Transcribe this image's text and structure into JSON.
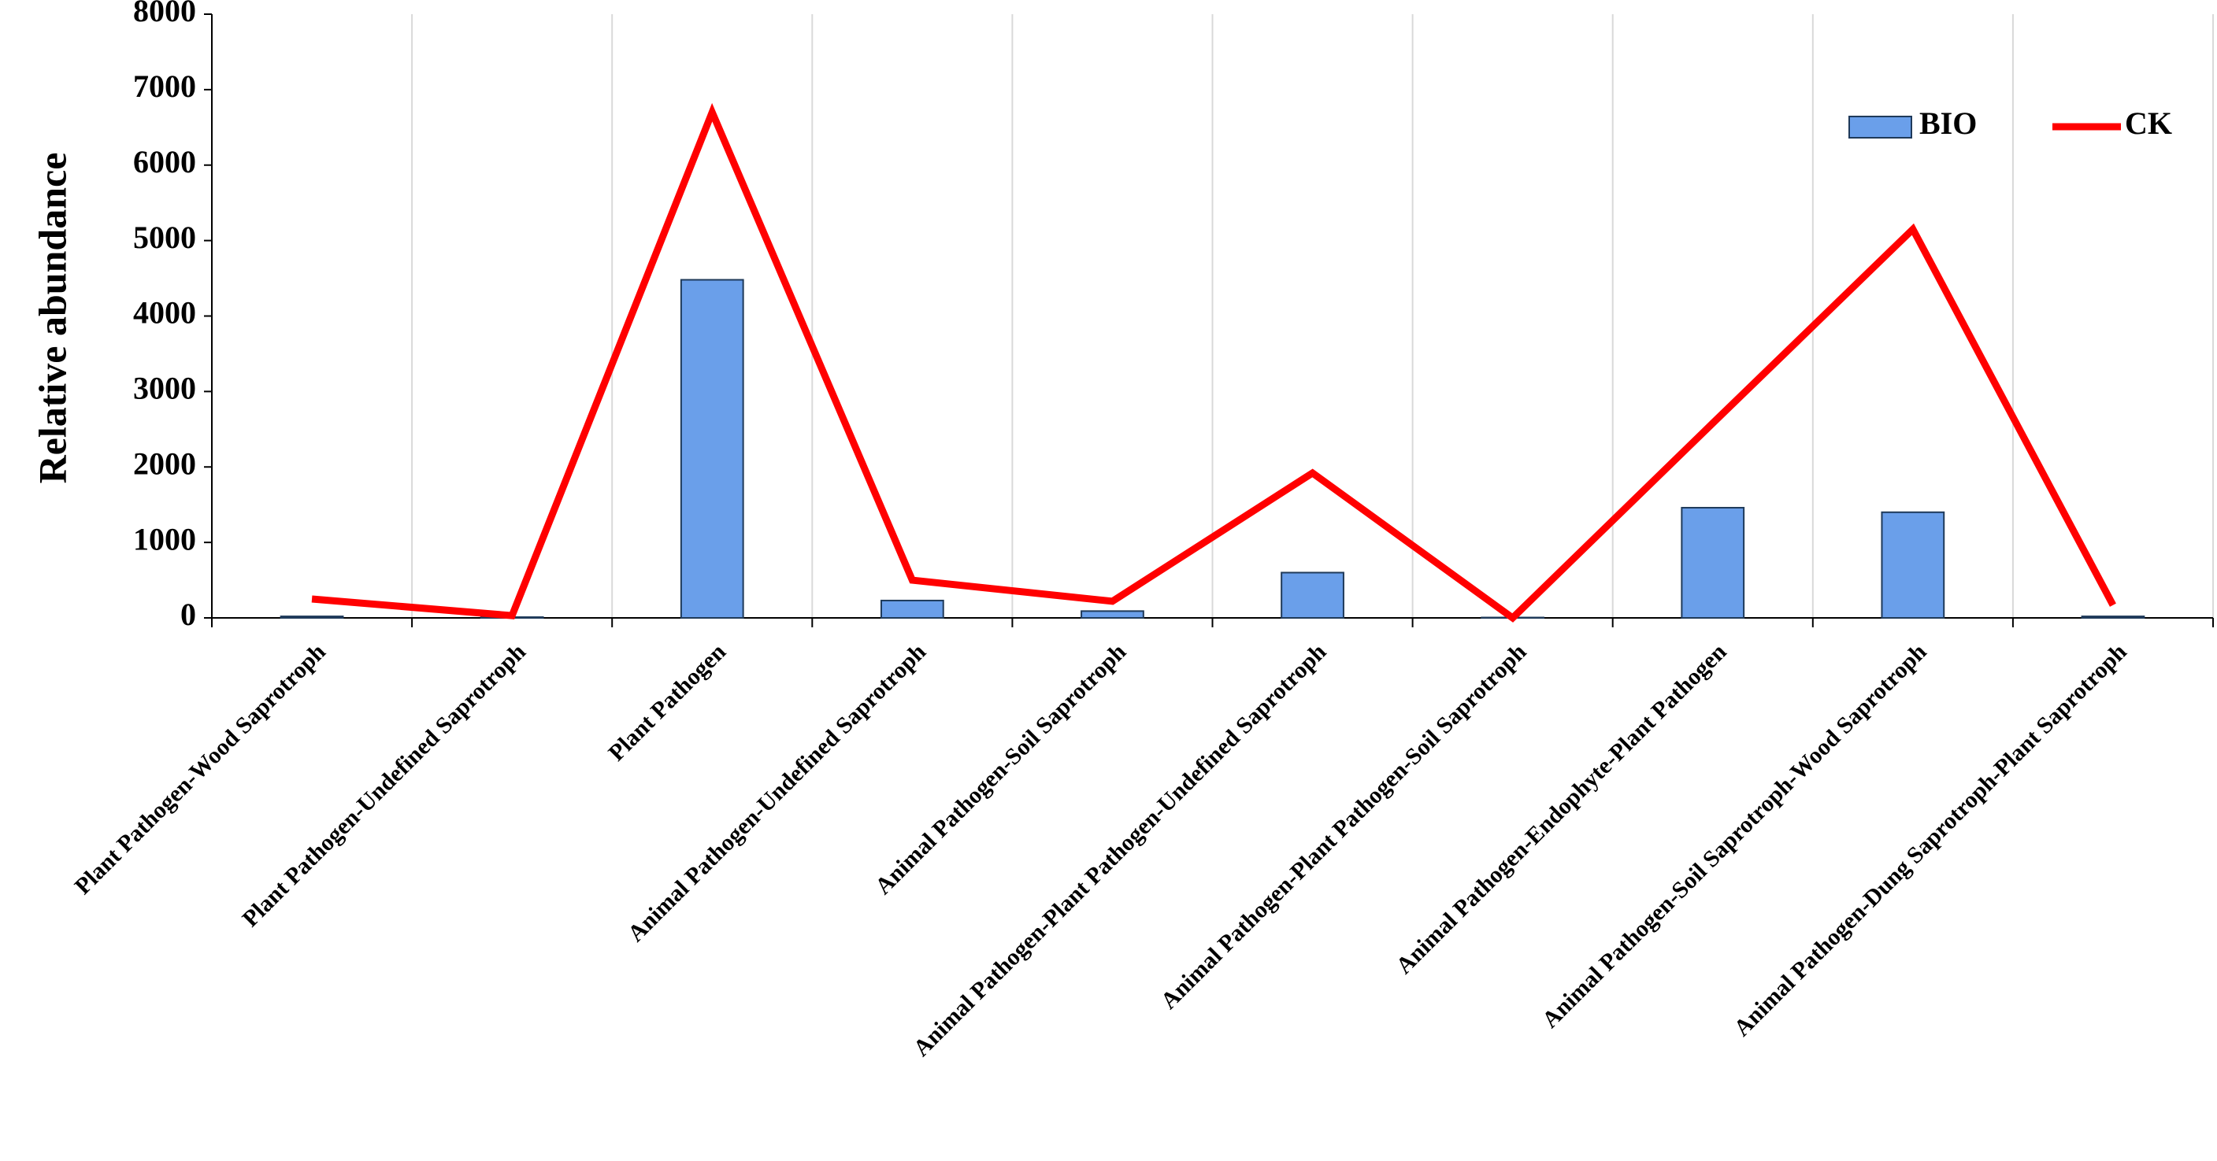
{
  "chart_data": {
    "type": "bar-line",
    "y_label": "Relative abundance",
    "categories": [
      "Plant Pathogen-Wood Saprotroph",
      "Plant Pathogen-Undefined Saprotroph",
      "Plant Pathogen",
      "Animal Pathogen-Undefined Saprotroph",
      "Animal Pathogen-Soil Saprotroph",
      "Animal Pathogen-Plant Pathogen-Undefined Saprotroph",
      "Animal Pathogen-Plant Pathogen-Soil Saprotroph",
      "Animal Pathogen-Endophyte-Plant Pathogen",
      "Animal Pathogen-Soil Saprotroph-Wood Saprotroph",
      "Animal Pathogen-Dung Saprotroph-Plant Saprotroph"
    ],
    "series": [
      {
        "name": "BIO",
        "kind": "bar",
        "color": "#6a9fea",
        "values": [
          20,
          10,
          4480,
          230,
          90,
          600,
          5,
          1460,
          1400,
          20
        ]
      },
      {
        "name": "CK",
        "kind": "line",
        "color": "#ff0000",
        "values": [
          250,
          30,
          6700,
          500,
          220,
          1920,
          0,
          2580,
          5150,
          170
        ]
      }
    ],
    "ylim": [
      0,
      8000
    ],
    "yticks": [
      0,
      1000,
      2000,
      3000,
      4000,
      5000,
      6000,
      7000,
      8000
    ],
    "grid": true,
    "legend": "top-right"
  }
}
